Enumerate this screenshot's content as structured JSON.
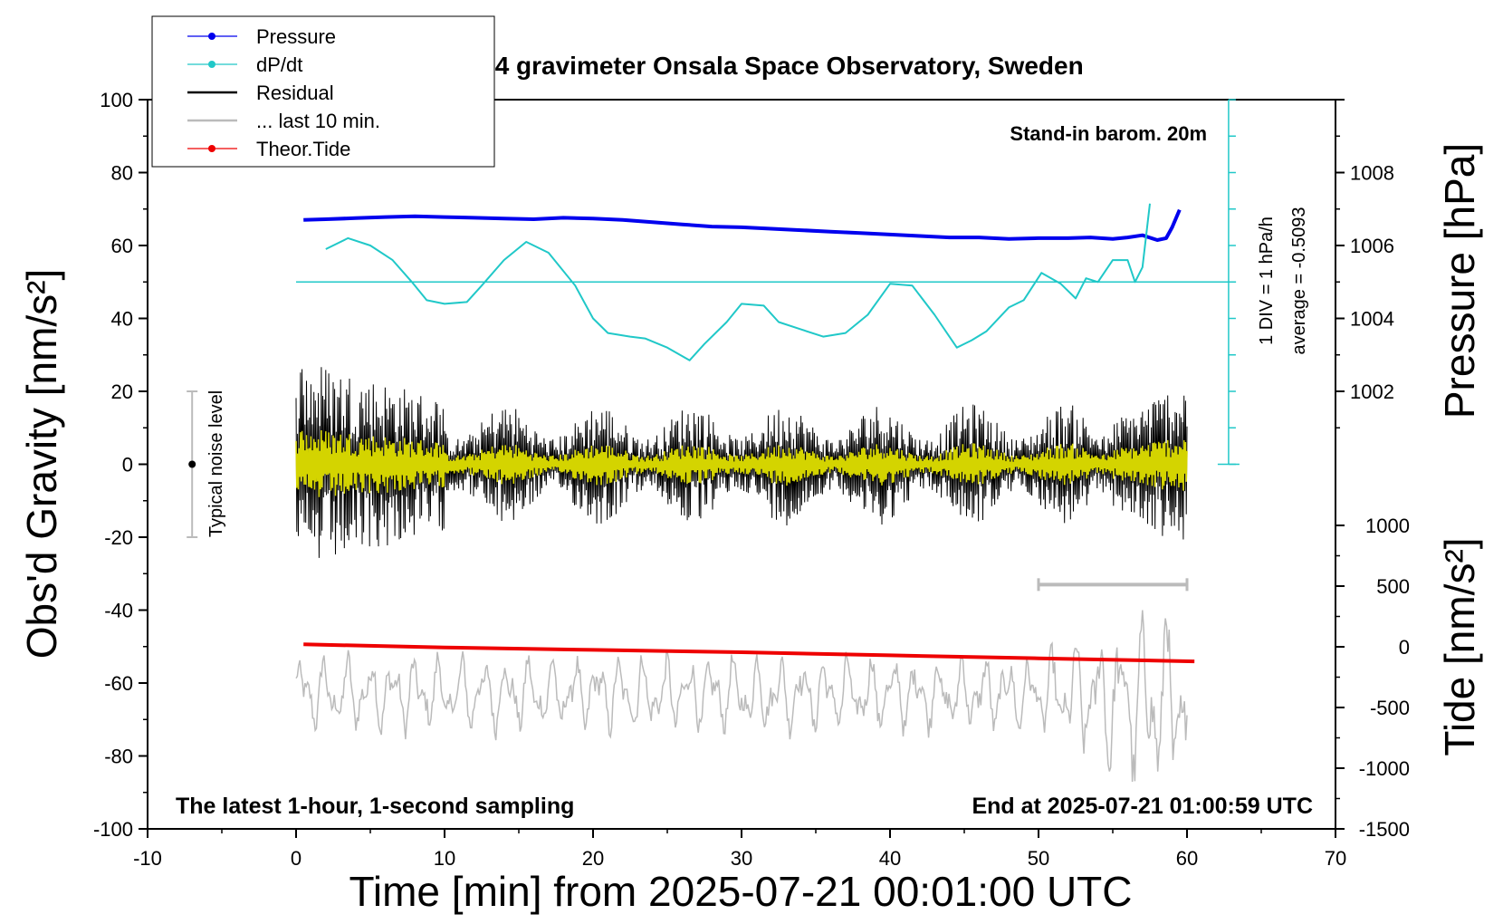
{
  "chart_data": {
    "type": "line",
    "title": "SCG_054 gravimeter Onsala Space Observatory, Sweden",
    "xlabel": "Time [min] from 2025-07-21 00:01:00 UTC",
    "ylabel_left": "Obs'd Gravity [nm/s²]",
    "ylabel_right_top": "Pressure [hPa]",
    "ylabel_right_bottom": "Tide [nm/s²]",
    "xlim": [
      -10,
      70
    ],
    "ylim_left": [
      -100,
      100
    ],
    "pressure_ylim": [
      1000,
      1010
    ],
    "tide_ylim": [
      -1500,
      1000
    ],
    "x_ticks": [
      "-10",
      "0",
      "10",
      "20",
      "30",
      "40",
      "50",
      "60",
      "70"
    ],
    "y_ticks_left": [
      "100",
      "80",
      "60",
      "40",
      "20",
      "0",
      "-20",
      "-40",
      "-60",
      "-80",
      "-100"
    ],
    "pressure_ticks": [
      "1008",
      "1006",
      "1004",
      "1002"
    ],
    "tide_ticks": [
      "1000",
      "500",
      "0",
      "-500",
      "-1000",
      "-1500"
    ],
    "annotations": {
      "barometer": "Stand-in barom. 20m",
      "footer_left": "The latest 1-hour, 1-second sampling",
      "footer_right": "End at 2025-07-21 01:00:59 UTC",
      "div_scale": "1 DIV = 1 hPa/h",
      "average": "average = -0.5093",
      "noise": "Typical noise level"
    },
    "legend": [
      {
        "name": "Pressure",
        "color": "#0000ee",
        "marker": true
      },
      {
        "name": "dP/dt",
        "color": "#20c8c8",
        "marker": true
      },
      {
        "name": "Residual",
        "color": "#000000",
        "marker": false
      },
      {
        "name": "... last 10 min.",
        "color": "#bbbbbb",
        "marker": false
      },
      {
        "name": "Theor.Tide",
        "color": "#ee0000",
        "marker": true
      }
    ],
    "colors": {
      "pressure": "#0000ee",
      "dpdt": "#20c8c8",
      "residual": "#000000",
      "residual_filtered": "#d4d400",
      "last10": "#bbbbbb",
      "tide": "#ee0000"
    },
    "series": [
      {
        "name": "Pressure",
        "axis": "pressure",
        "x": [
          0.5,
          2,
          4,
          6,
          8,
          10,
          12,
          14,
          16,
          18,
          20,
          22,
          24,
          26,
          28,
          30,
          32,
          34,
          36,
          38,
          40,
          42,
          44,
          46,
          48,
          50,
          52,
          53.5,
          55,
          56,
          57,
          58,
          58.6,
          59,
          59.5
        ],
        "y": [
          1006.7,
          1006.72,
          1006.75,
          1006.78,
          1006.8,
          1006.78,
          1006.76,
          1006.74,
          1006.72,
          1006.76,
          1006.74,
          1006.7,
          1006.64,
          1006.58,
          1006.52,
          1006.5,
          1006.46,
          1006.42,
          1006.38,
          1006.34,
          1006.3,
          1006.26,
          1006.22,
          1006.22,
          1006.18,
          1006.2,
          1006.2,
          1006.22,
          1006.18,
          1006.22,
          1006.28,
          1006.15,
          1006.2,
          1006.5,
          1006.98
        ]
      },
      {
        "name": "dP/dt",
        "axis": "left",
        "x": [
          2,
          3.5,
          5,
          6.5,
          7.8,
          8.8,
          10,
          11.5,
          12.5,
          14,
          15.5,
          17,
          18.8,
          20,
          21,
          22.5,
          23.5,
          25,
          26.5,
          27.5,
          29,
          30,
          31.5,
          32.5,
          34,
          35.5,
          37,
          38.5,
          40,
          41.5,
          43,
          44.5,
          45.5,
          46.5,
          48,
          49,
          50.2,
          51.5,
          52.5,
          53.2,
          54,
          55,
          56,
          56.5,
          57,
          57.5
        ],
        "y": [
          59,
          62,
          60,
          56,
          50,
          45,
          44,
          44.5,
          49,
          56,
          61,
          58,
          49,
          40,
          36,
          35,
          34.5,
          32,
          28.5,
          33,
          39,
          44,
          43.5,
          39,
          37,
          35,
          36,
          41,
          49.5,
          49,
          41,
          32,
          34,
          36.5,
          43,
          45,
          52.5,
          49.5,
          45.5,
          51,
          50,
          56,
          56,
          50,
          54,
          71.5
        ]
      },
      {
        "name": "Theor.Tide",
        "axis": "tide",
        "x": [
          0.5,
          10,
          20,
          30,
          40,
          50,
          60.5
        ],
        "y": [
          20,
          -5,
          -25,
          -45,
          -70,
          -95,
          -120
        ]
      }
    ],
    "residual": {
      "x_range": [
        0,
        60
      ],
      "noise_amplitude_start": 25,
      "noise_amplitude_middle": 10,
      "noise_amplitude_end": 20
    },
    "last_10_min": {
      "x_range": [
        0,
        60
      ],
      "center": -63,
      "amplitude": 10,
      "center_end": -66,
      "amplitude_end": 28
    },
    "gray_bar": {
      "x": [
        50,
        60
      ],
      "y": -33
    },
    "noise_bar": {
      "x": -7,
      "y": [
        -20,
        20
      ]
    },
    "dpdt_baseline": 50,
    "dpdt_scale_ticks": 10
  }
}
